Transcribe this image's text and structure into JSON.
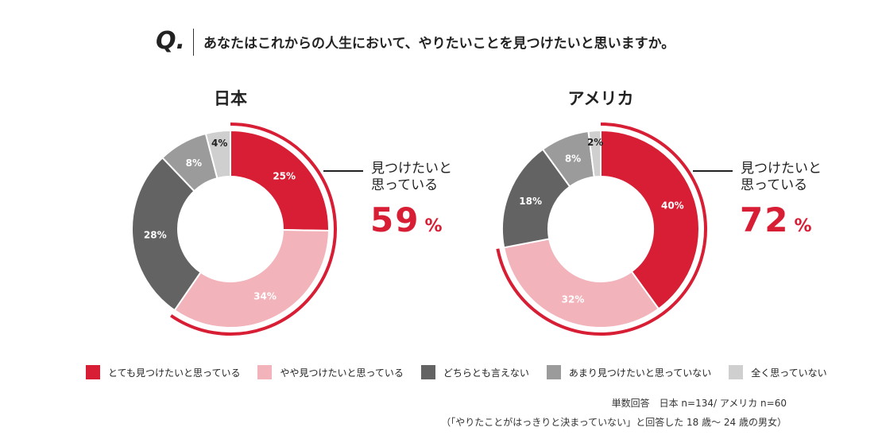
{
  "question": {
    "mark": "Q.",
    "text": "あなたはこれからの人生において、やりたいことを見つけたいと思いますか。"
  },
  "colors": {
    "strong_yes": "#d81e34",
    "somewhat_yes": "#f2b3ba",
    "neutral": "#636363",
    "somewhat_no": "#9b9b9b",
    "not_at_all": "#cfcfcf",
    "accent": "#d81e34"
  },
  "chart_data": [
    {
      "type": "pie",
      "title": "日本",
      "categories": [
        "とても見つけたいと思っている",
        "やや見つけたいと思っている",
        "どちらとも言えない",
        "あまり見つけたいと思っていない",
        "全く思っていない"
      ],
      "values": [
        25,
        34,
        28,
        8,
        4
      ],
      "labels": [
        "25%",
        "34%",
        "28%",
        "8%",
        "4%"
      ],
      "callout": {
        "text_line1": "見つけたいと",
        "text_line2": "思っている",
        "value": "59",
        "unit": "%"
      }
    },
    {
      "type": "pie",
      "title": "アメリカ",
      "categories": [
        "とても見つけたいと思っている",
        "やや見つけたいと思っている",
        "どちらとも言えない",
        "あまり見つけたいと思っていない",
        "全く思っていない"
      ],
      "values": [
        40,
        32,
        18,
        8,
        2
      ],
      "labels": [
        "40%",
        "32%",
        "18%",
        "8%",
        "2%"
      ],
      "callout": {
        "text_line1": "見つけたいと",
        "text_line2": "思っている",
        "value": "72",
        "unit": "%"
      }
    }
  ],
  "legend": [
    {
      "label": "とても見つけたいと思っている",
      "color": "#d81e34"
    },
    {
      "label": "やや見つけたいと思っている",
      "color": "#f2b3ba"
    },
    {
      "label": "どちらとも言えない",
      "color": "#636363"
    },
    {
      "label": "あまり見つけたいと思っていない",
      "color": "#9b9b9b"
    },
    {
      "label": "全く思っていない",
      "color": "#cfcfcf"
    }
  ],
  "notes": {
    "line1": "単数回答　日本 n=134/ アメリカ n=60",
    "line2": "（「やりたことがはっきりと決まっていない」と回答した 18 歳〜 24 歳の男女）"
  }
}
